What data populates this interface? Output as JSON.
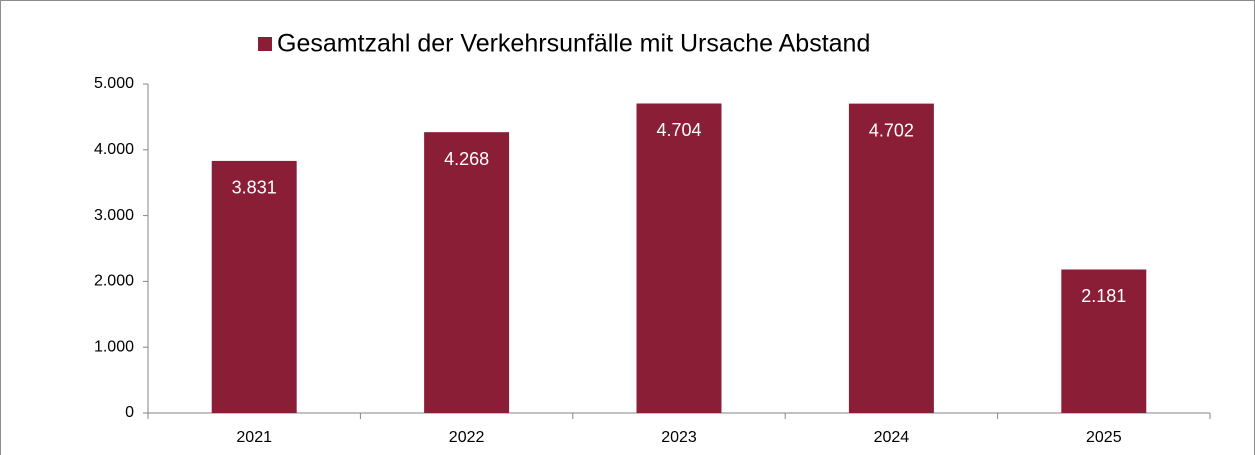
{
  "chart_data": {
    "type": "bar",
    "categories": [
      "2021",
      "2022",
      "2023",
      "2024",
      "2025"
    ],
    "series": [
      {
        "name": "Gesamtzahl der Verkehrsunfälle mit Ursache Abstand",
        "color": "#8a1e36",
        "values": [
          3831,
          4268,
          4704,
          4702,
          2181
        ],
        "value_labels": [
          "3.831",
          "4.268",
          "4.704",
          "4.702",
          "2.181"
        ]
      }
    ],
    "ylim": [
      0,
      5000
    ],
    "yticks": [
      0,
      {
        "value": 1000,
        "label": "1.000"
      },
      {
        "value": 2000,
        "label": "2.000"
      },
      {
        "value": 3000,
        "label": "3.000"
      },
      {
        "value": 4000,
        "label": "4.000"
      },
      {
        "value": 5000,
        "label": "5.000"
      }
    ],
    "grid": false,
    "legend": "top"
  }
}
